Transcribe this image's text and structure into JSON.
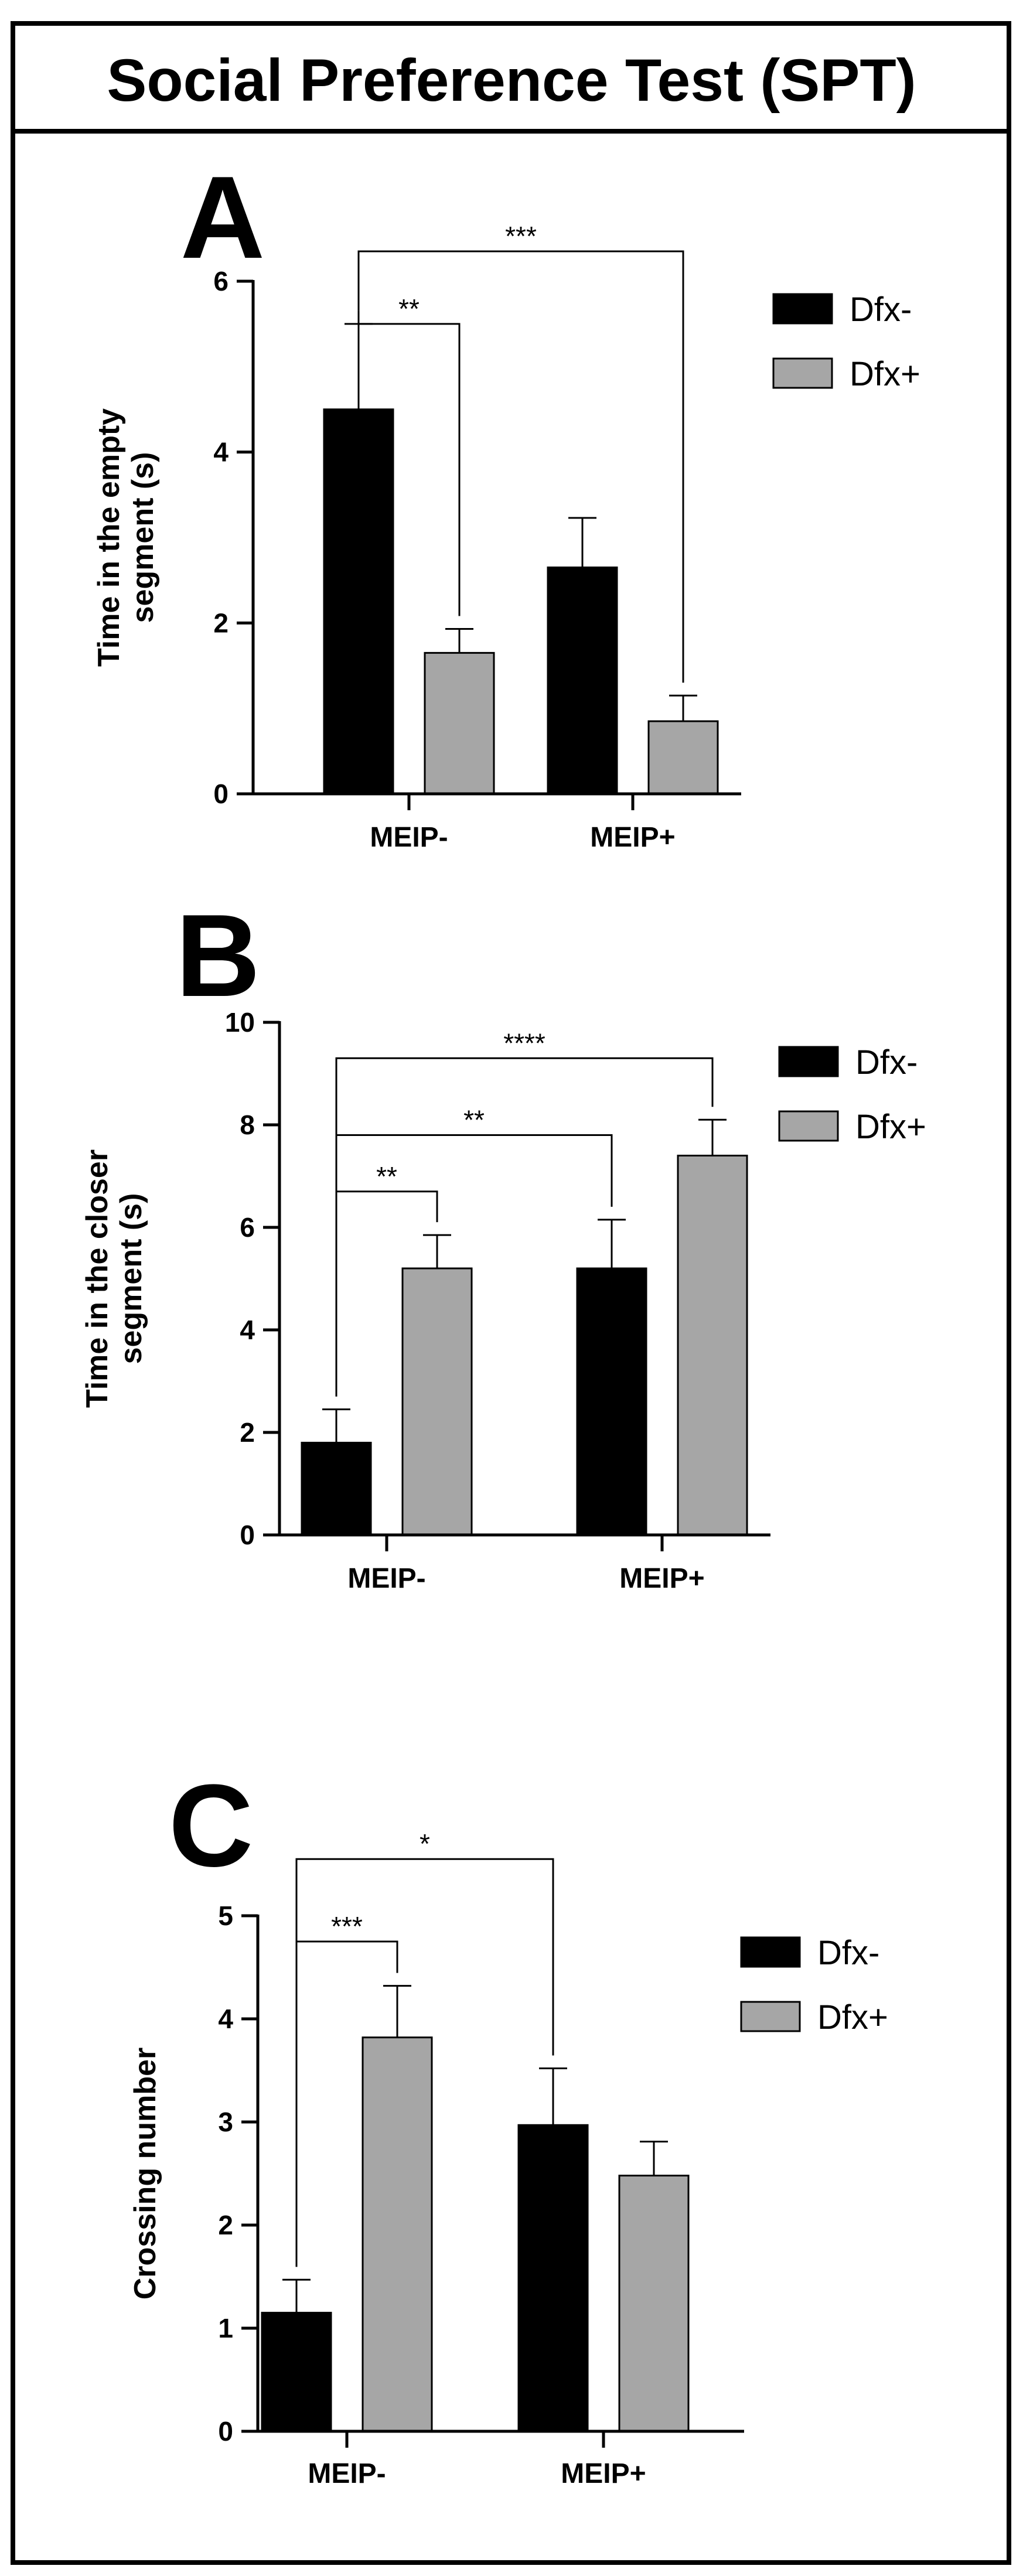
{
  "figure": {
    "title": "Social Preference Test (SPT)"
  },
  "colors": {
    "dfx_minus": "#000000",
    "dfx_plus": "#a6a6a6",
    "frame": "#000000",
    "background": "#ffffff"
  },
  "chart_data": [
    {
      "panel": "A",
      "type": "bar",
      "title": "",
      "ylabel": "Time in the empty segment (s)",
      "ylabel_lines": [
        "Time in the empty",
        "segment (s)"
      ],
      "xlabel": "",
      "categories": [
        "MEIP-",
        "MEIP+"
      ],
      "ylim": [
        0,
        6
      ],
      "yticks": [
        0,
        2,
        4,
        6
      ],
      "grid": false,
      "legend_position": "top-right",
      "series": [
        {
          "name": "Dfx-",
          "color": "#000000",
          "values": [
            4.5,
            2.65
          ],
          "errors": [
            1.0,
            0.58
          ]
        },
        {
          "name": "Dfx+",
          "color": "#a6a6a6",
          "values": [
            1.65,
            0.85
          ],
          "errors": [
            0.28,
            0.3
          ]
        }
      ],
      "annotations": [
        {
          "label": "**",
          "from": [
            0,
            0
          ],
          "to": [
            0,
            1
          ],
          "line_at": 5.5
        },
        {
          "label": "***",
          "from": [
            0,
            0
          ],
          "to": [
            1,
            1
          ],
          "line_at": 6.35
        }
      ]
    },
    {
      "panel": "B",
      "type": "bar",
      "title": "",
      "ylabel": "Time in the closer segment (s)",
      "ylabel_lines": [
        "Time in the closer",
        "segment (s)"
      ],
      "xlabel": "",
      "categories": [
        "MEIP-",
        "MEIP+"
      ],
      "ylim": [
        0,
        10
      ],
      "yticks": [
        0,
        2,
        4,
        6,
        8,
        10
      ],
      "grid": false,
      "legend_position": "top-right",
      "series": [
        {
          "name": "Dfx-",
          "color": "#000000",
          "values": [
            1.8,
            5.2
          ],
          "errors": [
            0.65,
            0.95
          ]
        },
        {
          "name": "Dfx+",
          "color": "#a6a6a6",
          "values": [
            5.2,
            7.4
          ],
          "errors": [
            0.65,
            0.7
          ]
        }
      ],
      "annotations": [
        {
          "label": "**",
          "from": [
            0,
            0
          ],
          "to": [
            0,
            1
          ],
          "line_at": 6.7
        },
        {
          "label": "**",
          "from": [
            0,
            0
          ],
          "to": [
            1,
            0
          ],
          "line_at": 7.8
        },
        {
          "label": "****",
          "from": [
            0,
            0
          ],
          "to": [
            1,
            1
          ],
          "line_at": 9.3
        }
      ]
    },
    {
      "panel": "C",
      "type": "bar",
      "title": "",
      "ylabel": "Crossing number",
      "ylabel_lines": [
        "Crossing number"
      ],
      "xlabel": "",
      "categories": [
        "MEIP-",
        "MEIP+"
      ],
      "ylim": [
        0,
        5
      ],
      "yticks": [
        0,
        1,
        2,
        3,
        4,
        5
      ],
      "grid": false,
      "legend_position": "top-right",
      "series": [
        {
          "name": "Dfx-",
          "color": "#000000",
          "values": [
            1.15,
            2.97
          ],
          "errors": [
            0.32,
            0.55
          ]
        },
        {
          "name": "Dfx+",
          "color": "#a6a6a6",
          "values": [
            3.82,
            2.48
          ],
          "errors": [
            0.5,
            0.33
          ]
        }
      ],
      "annotations": [
        {
          "label": "***",
          "from": [
            0,
            0
          ],
          "to": [
            0,
            1
          ],
          "line_at": 4.75
        },
        {
          "label": "*",
          "from": [
            0,
            0
          ],
          "to": [
            1,
            0
          ],
          "line_at": 5.55
        }
      ]
    }
  ]
}
